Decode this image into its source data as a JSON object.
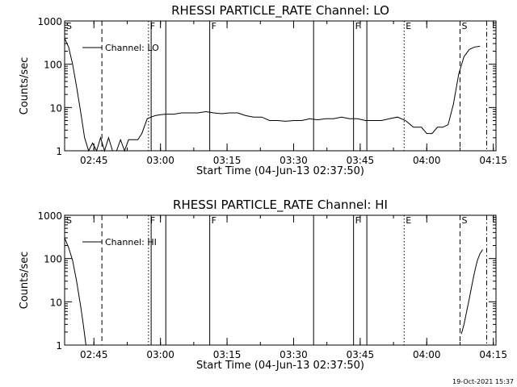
{
  "chart_data": [
    {
      "type": "line",
      "title": "RHESSI PARTICLE_RATE Channel: LO",
      "xlabel": "Start Time (04-Jun-13 02:37:50)",
      "ylabel": "Counts/sec",
      "yscale": "log",
      "ylim": [
        1,
        1000
      ],
      "xlim": [
        2.64,
        4.26
      ],
      "xticks": [
        2.75,
        3.0,
        3.25,
        3.5,
        3.75,
        4.0,
        4.25
      ],
      "xtick_labels": [
        "02:45",
        "03:00",
        "03:15",
        "03:30",
        "03:45",
        "04:00",
        "04:15"
      ],
      "yticks": [
        1,
        10,
        100,
        1000
      ],
      "ytick_labels": [
        "1",
        "10",
        "100",
        "1000"
      ],
      "legend": {
        "label": "Channel: LO",
        "position": "top-left"
      },
      "grid": false,
      "series": [
        {
          "name": "Channel: LO",
          "x": [
            2.64,
            2.655,
            2.67,
            2.685,
            2.7,
            2.715,
            2.73,
            2.745,
            2.76,
            2.775,
            2.79,
            2.805,
            2.82,
            2.835,
            2.85,
            2.865,
            2.88,
            2.9,
            2.915,
            2.93,
            2.95,
            2.965,
            2.98,
            3.0,
            3.02,
            3.05,
            3.08,
            3.11,
            3.14,
            3.17,
            3.2,
            3.23,
            3.26,
            3.29,
            3.32,
            3.35,
            3.38,
            3.41,
            3.44,
            3.47,
            3.5,
            3.53,
            3.56,
            3.59,
            3.62,
            3.65,
            3.68,
            3.71,
            3.74,
            3.77,
            3.8,
            3.83,
            3.86,
            3.89,
            3.92,
            3.95,
            3.96,
            3.98,
            4.0,
            4.02,
            4.04,
            4.06,
            4.08,
            4.1,
            4.12,
            4.14,
            4.16,
            4.18,
            4.2
          ],
          "y": [
            400,
            250,
            100,
            30,
            8,
            2,
            1,
            1.5,
            1,
            2,
            1,
            2,
            1,
            1,
            1.8,
            1,
            1.8,
            1.8,
            1.8,
            2.5,
            5.5,
            6,
            6.5,
            6.8,
            7,
            7,
            7.5,
            7.5,
            7.5,
            8,
            7.5,
            7.2,
            7.5,
            7.5,
            6.5,
            6,
            6,
            5,
            5,
            4.8,
            5,
            5,
            5.5,
            5.2,
            5.5,
            5.5,
            6,
            5.5,
            5.5,
            5,
            5,
            5,
            5.5,
            6,
            5,
            3.5,
            3.5,
            3.5,
            2.5,
            2.5,
            3.5,
            3.5,
            4,
            12,
            60,
            150,
            220,
            250,
            260
          ]
        }
      ],
      "vertical_markers": [
        {
          "label": "S",
          "x": 2.64,
          "style": "solid"
        },
        {
          "label": "",
          "x": 2.78,
          "style": "dashed"
        },
        {
          "label": "F",
          "x": 2.955,
          "style": "dotted"
        },
        {
          "label": "",
          "x": 2.965,
          "style": "solid"
        },
        {
          "label": "",
          "x": 3.02,
          "style": "solid"
        },
        {
          "label": "F",
          "x": 3.185,
          "style": "solid"
        },
        {
          "label": "",
          "x": 3.575,
          "style": "solid"
        },
        {
          "label": "F",
          "x": 3.725,
          "style": "solid"
        },
        {
          "label": "",
          "x": 3.775,
          "style": "solid"
        },
        {
          "label": "E",
          "x": 3.915,
          "style": "dotted"
        },
        {
          "label": "S",
          "x": 4.125,
          "style": "dashed"
        },
        {
          "label": "",
          "x": 4.225,
          "style": "dashdot"
        }
      ]
    },
    {
      "type": "line",
      "title": "RHESSI PARTICLE_RATE Channel: HI",
      "xlabel": "Start Time (04-Jun-13 02:37:50)",
      "ylabel": "Counts/sec",
      "yscale": "log",
      "ylim": [
        1,
        1000
      ],
      "xlim": [
        2.64,
        4.26
      ],
      "xticks": [
        2.75,
        3.0,
        3.25,
        3.5,
        3.75,
        4.0,
        4.25
      ],
      "xtick_labels": [
        "02:45",
        "03:00",
        "03:15",
        "03:30",
        "03:45",
        "04:00",
        "04:15"
      ],
      "yticks": [
        1,
        10,
        100,
        1000
      ],
      "ytick_labels": [
        "1",
        "10",
        "100",
        "1000"
      ],
      "legend": {
        "label": "Channel: HI",
        "position": "top-left"
      },
      "grid": false,
      "series": [
        {
          "name": "Channel: HI",
          "x": [
            2.64,
            2.655,
            2.67,
            2.685,
            2.7,
            2.71,
            2.72
          ],
          "y": [
            300,
            180,
            90,
            30,
            8,
            3,
            1
          ]
        },
        {
          "name": "Channel: HI",
          "x": [
            4.13,
            4.14,
            4.15,
            4.16,
            4.17,
            4.18,
            4.19,
            4.2,
            4.21
          ],
          "y": [
            1.8,
            3,
            6,
            12,
            25,
            50,
            90,
            130,
            160
          ]
        }
      ],
      "vertical_markers": [
        {
          "label": "S",
          "x": 2.64,
          "style": "solid"
        },
        {
          "label": "",
          "x": 2.78,
          "style": "dashed"
        },
        {
          "label": "F",
          "x": 2.955,
          "style": "dotted"
        },
        {
          "label": "",
          "x": 2.965,
          "style": "solid"
        },
        {
          "label": "",
          "x": 3.02,
          "style": "solid"
        },
        {
          "label": "F",
          "x": 3.185,
          "style": "solid"
        },
        {
          "label": "",
          "x": 3.575,
          "style": "solid"
        },
        {
          "label": "F",
          "x": 3.725,
          "style": "solid"
        },
        {
          "label": "",
          "x": 3.775,
          "style": "solid"
        },
        {
          "label": "E",
          "x": 3.915,
          "style": "dotted"
        },
        {
          "label": "S",
          "x": 4.125,
          "style": "dashed"
        },
        {
          "label": "",
          "x": 4.225,
          "style": "dashdot"
        }
      ]
    }
  ],
  "footer": {
    "timestamp": "19-Oct-2021 15:37"
  }
}
